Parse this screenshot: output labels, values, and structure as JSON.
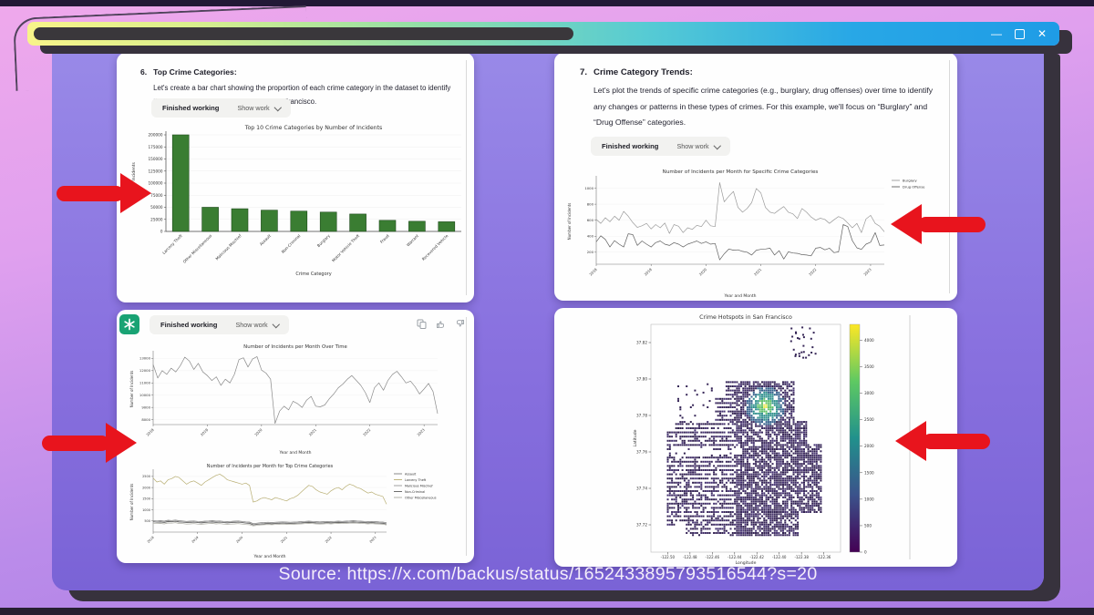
{
  "page": {
    "source_caption": "Source: https://x.com/backus/status/1652433895793516544?s=20"
  },
  "window_controls": {
    "minimize": "—",
    "close": "✕"
  },
  "accent_colors": {
    "arrow_red": "#e8141d",
    "chatgpt_green": "#19a374",
    "bar_green": "#3a7d32"
  },
  "cards": {
    "top_left": {
      "number": "6.",
      "heading": "Top Crime Categories:",
      "body": "Let's create a bar chart showing the proportion of each crime category in the dataset to identify the most common types of crimes in San Francisco.",
      "finished_label": "Finished working",
      "show_work_label": "Show work"
    },
    "top_right": {
      "number": "7.",
      "heading": "Crime Category Trends:",
      "body": "Let's plot the trends of specific crime categories (e.g., burglary, drug offenses) over time to identify any changes or patterns in these types of crimes. For this example, we'll focus on “Burglary” and “Drug Offense” categories.",
      "finished_label": "Finished working",
      "show_work_label": "Show work"
    },
    "bottom_left": {
      "finished_label": "Finished working",
      "show_work_label": "Show work"
    }
  },
  "chart_data": [
    {
      "id": "bar-top10",
      "type": "bar",
      "title": "Top 10 Crime Categories by Number of Incidents",
      "xlabel": "Crime Category",
      "ylabel": "Number of Incidents",
      "categories": [
        "Larceny Theft",
        "Other Miscellaneous",
        "Malicious Mischief",
        "Assault",
        "Non-Criminal",
        "Burglary",
        "Motor Vehicle Theft",
        "Fraud",
        "Warrant",
        "Recovered Vehicle"
      ],
      "values": [
        200000,
        50000,
        47000,
        44000,
        42000,
        40000,
        36000,
        23000,
        21000,
        20000
      ],
      "ylim": [
        0,
        200000
      ],
      "yticks": [
        0,
        25000,
        50000,
        75000,
        100000,
        125000,
        150000,
        175000,
        200000
      ],
      "bar_color": "#3a7d32",
      "grid": true
    },
    {
      "id": "line-categories",
      "type": "line",
      "title": "Number of Incidents per Month for Specific Crime Categories",
      "xlabel": "Year and Month",
      "ylabel": "Number of Incidents",
      "xticklabels": [
        "2018",
        "2019",
        "2020",
        "2021",
        "2022",
        "2023"
      ],
      "ylim": [
        50,
        1120
      ],
      "yticks": [
        200,
        400,
        600,
        800,
        1000
      ],
      "legend_position": "outside-right-top",
      "series": [
        {
          "name": "Burglary",
          "color": "#9b9b9b",
          "values": [
            610,
            560,
            630,
            580,
            650,
            600,
            710,
            650,
            570,
            510,
            530,
            560,
            490,
            545,
            505,
            565,
            435,
            545,
            525,
            445,
            505,
            485,
            535,
            520,
            600,
            530,
            520,
            1070,
            830,
            900,
            960,
            760,
            700,
            745,
            820,
            995,
            940,
            760,
            700,
            685,
            730,
            770,
            700,
            680,
            620,
            745,
            700,
            640,
            600,
            625,
            610,
            560,
            605,
            645,
            620,
            565,
            505,
            560,
            445,
            615,
            660,
            560,
            525,
            455
          ]
        },
        {
          "name": "Drug Offense",
          "color": "#5f5f5f",
          "values": [
            330,
            405,
            360,
            265,
            345,
            300,
            265,
            430,
            420,
            285,
            340,
            300,
            265,
            320,
            340,
            300,
            285,
            320,
            300,
            265,
            300,
            320,
            340,
            310,
            330,
            300,
            310,
            105,
            180,
            240,
            225,
            230,
            210,
            200,
            165,
            225,
            235,
            240,
            250,
            165,
            220,
            115,
            205,
            190,
            185,
            170,
            165,
            155,
            250,
            260,
            230,
            250,
            195,
            205,
            545,
            520,
            345,
            255,
            235,
            300,
            325,
            445,
            285,
            290
          ]
        }
      ]
    },
    {
      "id": "line-total",
      "type": "line",
      "title": "Number of Incidents per Month Over Time",
      "xlabel": "Year and Month",
      "ylabel": "Number of Incidents",
      "xticklabels": [
        "2018",
        "2019",
        "2020",
        "2021",
        "2022",
        "2023"
      ],
      "ylim": [
        7600,
        13400
      ],
      "yticks": [
        8000,
        9000,
        10000,
        11000,
        12000,
        13000
      ],
      "series": [
        {
          "name": "Incidents",
          "color": "#8a8a8a",
          "values": [
            12500,
            11400,
            12000,
            11700,
            12200,
            11900,
            12400,
            13100,
            12800,
            12100,
            12600,
            11900,
            11600,
            11200,
            11500,
            10800,
            11300,
            11000,
            11700,
            12900,
            13050,
            12300,
            12950,
            13150,
            12050,
            11800,
            11300,
            7700,
            8700,
            9100,
            8800,
            9500,
            9300,
            9000,
            9600,
            9900,
            9100,
            9050,
            9200,
            9700,
            10100,
            10600,
            10900,
            11300,
            11600,
            11200,
            10800,
            10200,
            9400,
            10600,
            11000,
            10400,
            11200,
            11700,
            11950,
            11500,
            11000,
            11150,
            10700,
            10100,
            10500,
            10950,
            10300,
            8500
          ]
        }
      ]
    },
    {
      "id": "line-top-categories",
      "type": "line",
      "title": "Number of Incidents per Month for Top Crime Categories",
      "xlabel": "Year and Month",
      "ylabel": "Number of Incidents",
      "xticklabels": [
        "2018",
        "2019",
        "2020",
        "2021",
        "2022",
        "2023"
      ],
      "ylim": [
        0,
        2700
      ],
      "yticks": [
        500,
        1000,
        1500,
        2000,
        2500
      ],
      "legend_position": "outside-right-top",
      "series": [
        {
          "name": "Assault",
          "color": "#7c7c7c",
          "values": [
            520,
            500,
            510,
            490,
            530,
            520,
            540,
            510,
            500,
            480,
            490,
            500,
            480,
            470,
            490,
            500,
            510,
            490,
            500,
            480,
            470,
            480,
            490,
            500,
            480,
            460,
            450,
            380,
            400,
            420,
            430,
            440,
            430,
            440,
            450,
            460,
            450,
            440,
            450,
            460,
            470,
            480,
            490,
            480,
            470,
            460,
            470,
            480,
            470,
            480,
            490,
            480,
            490,
            500,
            510,
            500,
            490,
            480,
            470,
            480,
            470,
            460,
            450,
            420
          ]
        },
        {
          "name": "Larceny Theft",
          "color": "#b8ae72",
          "values": [
            2420,
            2250,
            2300,
            2150,
            2350,
            2400,
            2500,
            2450,
            2300,
            2150,
            2250,
            2300,
            2200,
            2100,
            2250,
            2350,
            2450,
            2550,
            2600,
            2500,
            2350,
            2300,
            2250,
            2200,
            2150,
            2200,
            2100,
            1350,
            1400,
            1500,
            1550,
            1500,
            1450,
            1550,
            1500,
            1450,
            1400,
            1500,
            1550,
            1650,
            1800,
            1950,
            2100,
            2050,
            1900,
            1800,
            1750,
            1700,
            1850,
            1950,
            2000,
            1900,
            2050,
            2150,
            2100,
            2000,
            1950,
            1850,
            1750,
            1800,
            1700,
            1650,
            1600,
            1250
          ]
        },
        {
          "name": "Malicious Mischief",
          "color": "#989898",
          "values": [
            480,
            460,
            470,
            450,
            490,
            480,
            500,
            470,
            460,
            440,
            450,
            460,
            440,
            430,
            450,
            460,
            470,
            450,
            460,
            440,
            430,
            440,
            450,
            460,
            440,
            420,
            410,
            340,
            360,
            380,
            390,
            400,
            390,
            400,
            410,
            420,
            410,
            400,
            410,
            420,
            430,
            440,
            450,
            440,
            430,
            420,
            430,
            440,
            430,
            440,
            450,
            440,
            450,
            460,
            470,
            460,
            450,
            440,
            430,
            440,
            430,
            420,
            410,
            380
          ]
        },
        {
          "name": "Non-Criminal",
          "color": "#5e5e5e",
          "values": [
            460,
            440,
            450,
            430,
            470,
            460,
            480,
            450,
            440,
            420,
            430,
            440,
            420,
            410,
            430,
            440,
            450,
            430,
            440,
            420,
            410,
            420,
            430,
            440,
            420,
            400,
            390,
            320,
            340,
            360,
            370,
            380,
            370,
            380,
            390,
            400,
            390,
            380,
            390,
            400,
            410,
            420,
            430,
            420,
            410,
            400,
            410,
            420,
            410,
            420,
            430,
            420,
            430,
            440,
            450,
            440,
            430,
            420,
            410,
            420,
            410,
            400,
            390,
            360
          ]
        },
        {
          "name": "Other Miscellaneous",
          "color": "#aaaaa0",
          "values": [
            400,
            380,
            390,
            370,
            410,
            400,
            420,
            390,
            380,
            360,
            370,
            380,
            360,
            350,
            370,
            380,
            390,
            370,
            380,
            360,
            350,
            360,
            370,
            380,
            360,
            340,
            330,
            280,
            300,
            320,
            330,
            340,
            330,
            340,
            350,
            360,
            350,
            340,
            350,
            360,
            370,
            380,
            390,
            380,
            370,
            360,
            370,
            380,
            370,
            380,
            390,
            380,
            390,
            400,
            410,
            400,
            390,
            380,
            370,
            380,
            370,
            360,
            350,
            320
          ]
        }
      ]
    },
    {
      "id": "hotspots",
      "type": "heatmap",
      "title": "Crime Hotspots in San Francisco",
      "xlabel": "Longitude",
      "ylabel": "Latitude",
      "xlim": [
        -122.515,
        -122.345
      ],
      "ylim": [
        37.705,
        37.83
      ],
      "xticks": [
        -122.5,
        -122.48,
        -122.46,
        -122.44,
        -122.42,
        -122.4,
        -122.38,
        -122.36
      ],
      "yticks": [
        37.82,
        37.8,
        37.78,
        37.76,
        37.74,
        37.72
      ],
      "colorbar": {
        "colormap": "viridis",
        "max": 4300,
        "ticks": [
          0,
          500,
          1000,
          1500,
          2000,
          2500,
          3000,
          3500,
          4000
        ]
      },
      "hotspot": {
        "lon": -122.41,
        "lat": 37.787,
        "peak_value": 4300
      }
    }
  ]
}
